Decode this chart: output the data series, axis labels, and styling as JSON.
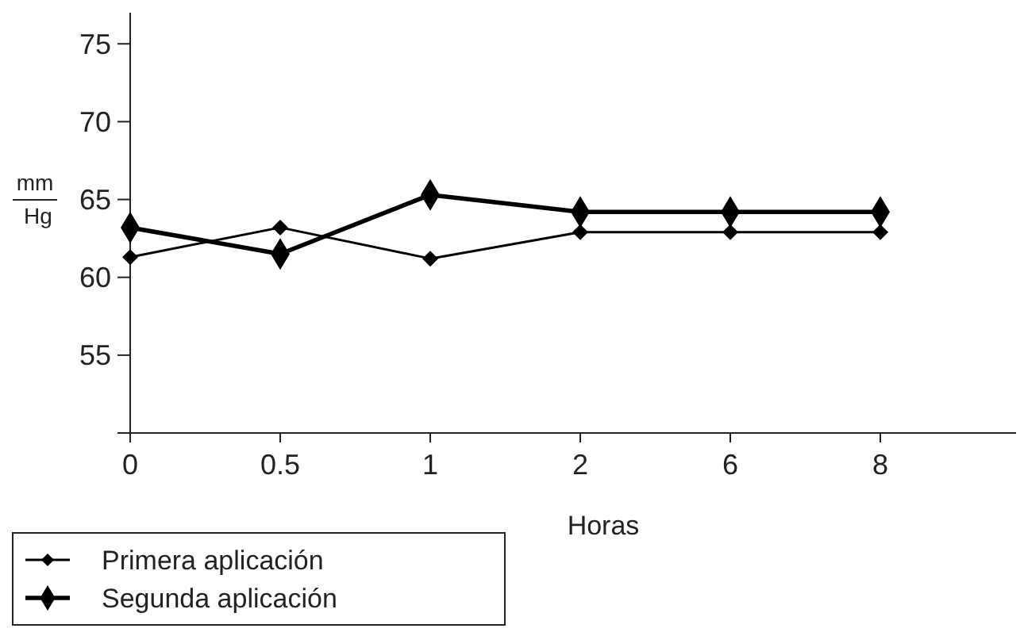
{
  "chart_data": {
    "type": "line",
    "xlabel": "Horas",
    "ylabel": "mm Hg",
    "categories": [
      "0",
      "0.5",
      "1",
      "2",
      "6",
      "8"
    ],
    "series": [
      {
        "name": "Primera aplicación",
        "color": "#000000",
        "values": [
          61.3,
          63.2,
          61.2,
          62.9,
          62.9,
          62.9
        ]
      },
      {
        "name": "Segunda aplicación",
        "color": "#000000",
        "values": [
          63.2,
          61.5,
          65.3,
          64.2,
          64.2,
          64.2
        ]
      }
    ],
    "ylim": [
      50,
      77
    ],
    "yticks": [
      {
        "value": 50,
        "label": null
      },
      55,
      60,
      65,
      70,
      75
    ],
    "grid": false,
    "legend": "bottom left",
    "marker": "diamond",
    "line_style": "solid"
  }
}
